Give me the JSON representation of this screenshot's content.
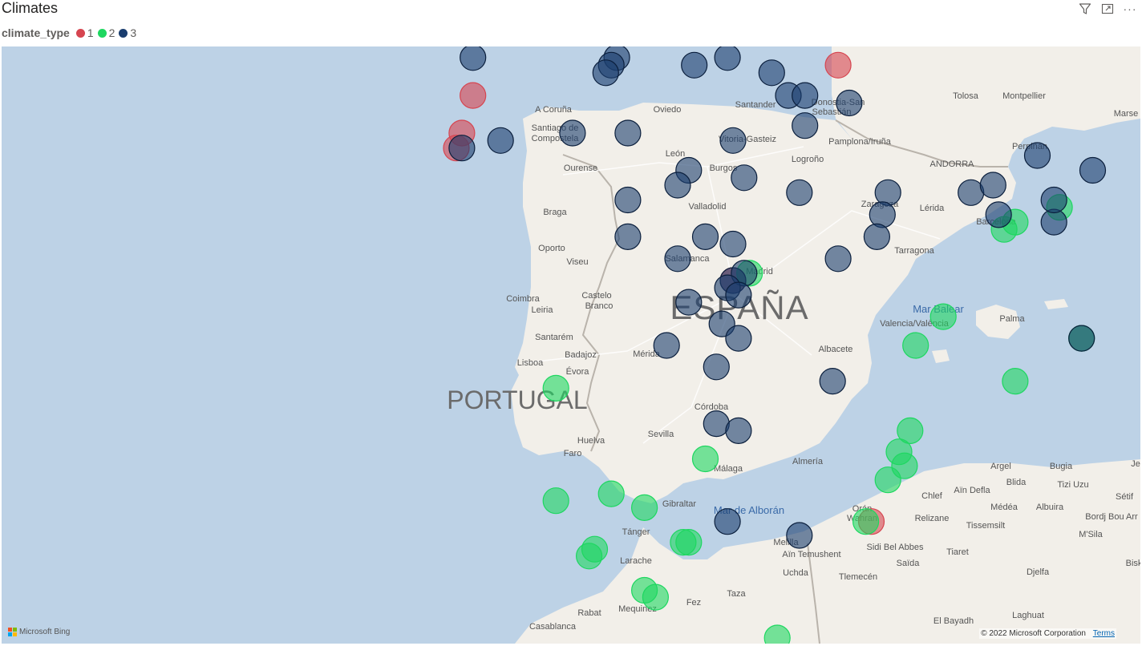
{
  "visual": {
    "title": "Climates"
  },
  "toolbar": {
    "filter_icon": "filter-icon",
    "focus_icon": "focus-mode-icon",
    "more_label": "···"
  },
  "legend": {
    "title": "climate_type",
    "items": [
      {
        "label": "1",
        "color": "#d64550"
      },
      {
        "label": "2",
        "color": "#1ed760"
      },
      {
        "label": "3",
        "color": "#1a3d6e"
      }
    ]
  },
  "map": {
    "attribution_brand": "Microsoft Bing",
    "copyright": "© 2022 Microsoft Corporation",
    "terms_label": "Terms",
    "country_labels": [
      "ESPAÑA",
      "PORTUGAL"
    ],
    "sea_labels": [
      "Mar Balear",
      "Mar de Alborán"
    ],
    "place_labels": [
      "A Coruña",
      "Santiago de",
      "Compostela",
      "Oviedo",
      "Santander",
      "Donostia-San",
      "Sebastián",
      "Vitoria-Gasteiz",
      "Pamplona/Iruña",
      "Logroño",
      "León",
      "Ourense",
      "Burgos",
      "Valladolid",
      "Braga",
      "Oporto",
      "Viseu",
      "Salamanca",
      "Madrid",
      "Zaragoza",
      "Lérida",
      "ANDORRA",
      "Barcelona",
      "Tarragona",
      "Coimbra",
      "Leiria",
      "Castelo",
      "Branco",
      "Santarém",
      "Lisboa",
      "Évora",
      "Badajoz",
      "Mérida",
      "Valencia/València",
      "Palma",
      "Albacete",
      "Córdoba",
      "Sevilla",
      "Huelva",
      "Faro",
      "Málaga",
      "Almería",
      "Gibraltar",
      "Tánger",
      "Larache",
      "Rabat",
      "Mequinez",
      "Fez",
      "Taza",
      "Casablanca",
      "Melilla",
      "Aïn Temushent",
      "Uchda",
      "Tlemecén",
      "Orán",
      "Wahran",
      "Relizane",
      "Sidi Bel Abbes",
      "Saïda",
      "Tiaret",
      "Tissemsilt",
      "Chlef",
      "Aïn Defla",
      "Médéa",
      "Blida",
      "Argel",
      "Bugia",
      "Tizi Uzu",
      "Albuira",
      "Sétif",
      "Bordj Bou Arr",
      "M'Sila",
      "Djelfa",
      "Laghuat",
      "El Bayadh",
      "Tolosa",
      "Montpellier",
      "Marse",
      "Perpiñán",
      "Je",
      "Bisk"
    ]
  },
  "chart_data": {
    "type": "scatter",
    "title": "Climates",
    "legend_title": "climate_type",
    "legend_position": "top-left",
    "categories": [
      "1",
      "2",
      "3"
    ],
    "series": [
      {
        "name": "1",
        "color": "#d64550",
        "points": [
          [
            -8.4,
            42.9
          ],
          [
            -8.6,
            42.4
          ],
          [
            -8.7,
            42.2
          ],
          [
            -3.7,
            40.4
          ],
          [
            -1.8,
            43.3
          ],
          [
            -1.2,
            37.0
          ]
        ]
      },
      {
        "name": "2",
        "color": "#1ed760",
        "points": [
          [
            -3.4,
            40.5
          ],
          [
            0.1,
            39.9
          ],
          [
            -0.4,
            39.5
          ],
          [
            1.2,
            41.1
          ],
          [
            1.4,
            41.2
          ],
          [
            2.2,
            41.4
          ],
          [
            2.6,
            39.6
          ],
          [
            1.4,
            39.0
          ],
          [
            -6.9,
            38.9
          ],
          [
            -0.5,
            38.3
          ],
          [
            -0.7,
            38.0
          ],
          [
            -0.6,
            37.8
          ],
          [
            -0.9,
            37.6
          ],
          [
            -1.3,
            37.0
          ],
          [
            -4.2,
            37.9
          ],
          [
            -5.9,
            37.4
          ],
          [
            -5.3,
            37.2
          ],
          [
            -6.9,
            37.3
          ],
          [
            -4.5,
            36.7
          ],
          [
            -6.2,
            36.6
          ],
          [
            -6.3,
            36.5
          ],
          [
            -5.3,
            36.0
          ],
          [
            -5.1,
            35.9
          ],
          [
            -4.6,
            36.7
          ],
          [
            -2.9,
            35.3
          ]
        ]
      },
      {
        "name": "3",
        "color": "#1a3d6e",
        "points": [
          [
            -8.4,
            43.4
          ],
          [
            -5.8,
            43.4
          ],
          [
            -5.9,
            43.3
          ],
          [
            -6.0,
            43.2
          ],
          [
            -4.4,
            43.3
          ],
          [
            -3.8,
            43.4
          ],
          [
            -3.0,
            43.2
          ],
          [
            -2.7,
            42.9
          ],
          [
            -2.4,
            42.9
          ],
          [
            -1.6,
            42.8
          ],
          [
            -2.4,
            42.5
          ],
          [
            -7.9,
            42.3
          ],
          [
            -6.6,
            42.4
          ],
          [
            -5.6,
            42.4
          ],
          [
            -3.7,
            42.3
          ],
          [
            -8.6,
            42.2
          ],
          [
            -4.5,
            41.9
          ],
          [
            -3.5,
            41.8
          ],
          [
            -2.5,
            41.6
          ],
          [
            -4.7,
            41.7
          ],
          [
            -5.6,
            41.5
          ],
          [
            -0.9,
            41.6
          ],
          [
            0.6,
            41.6
          ],
          [
            -5.6,
            41.0
          ],
          [
            -4.2,
            41.0
          ],
          [
            -3.7,
            40.9
          ],
          [
            -4.7,
            40.7
          ],
          [
            -3.7,
            40.4
          ],
          [
            -3.5,
            40.5
          ],
          [
            -3.8,
            40.3
          ],
          [
            -3.6,
            40.2
          ],
          [
            -4.5,
            40.1
          ],
          [
            -4.9,
            39.5
          ],
          [
            -3.9,
            39.8
          ],
          [
            -3.6,
            39.6
          ],
          [
            -4.0,
            39.2
          ],
          [
            -1.0,
            41.3
          ],
          [
            -1.1,
            41.0
          ],
          [
            -1.8,
            40.7
          ],
          [
            1.1,
            41.3
          ],
          [
            2.1,
            41.2
          ],
          [
            1.0,
            41.7
          ],
          [
            1.8,
            42.1
          ],
          [
            2.8,
            41.9
          ],
          [
            2.1,
            41.5
          ],
          [
            2.6,
            39.6
          ],
          [
            -1.9,
            39.0
          ],
          [
            -4.0,
            38.4
          ],
          [
            -3.6,
            38.3
          ],
          [
            -3.8,
            37.0
          ],
          [
            -2.5,
            36.8
          ]
        ]
      }
    ]
  }
}
